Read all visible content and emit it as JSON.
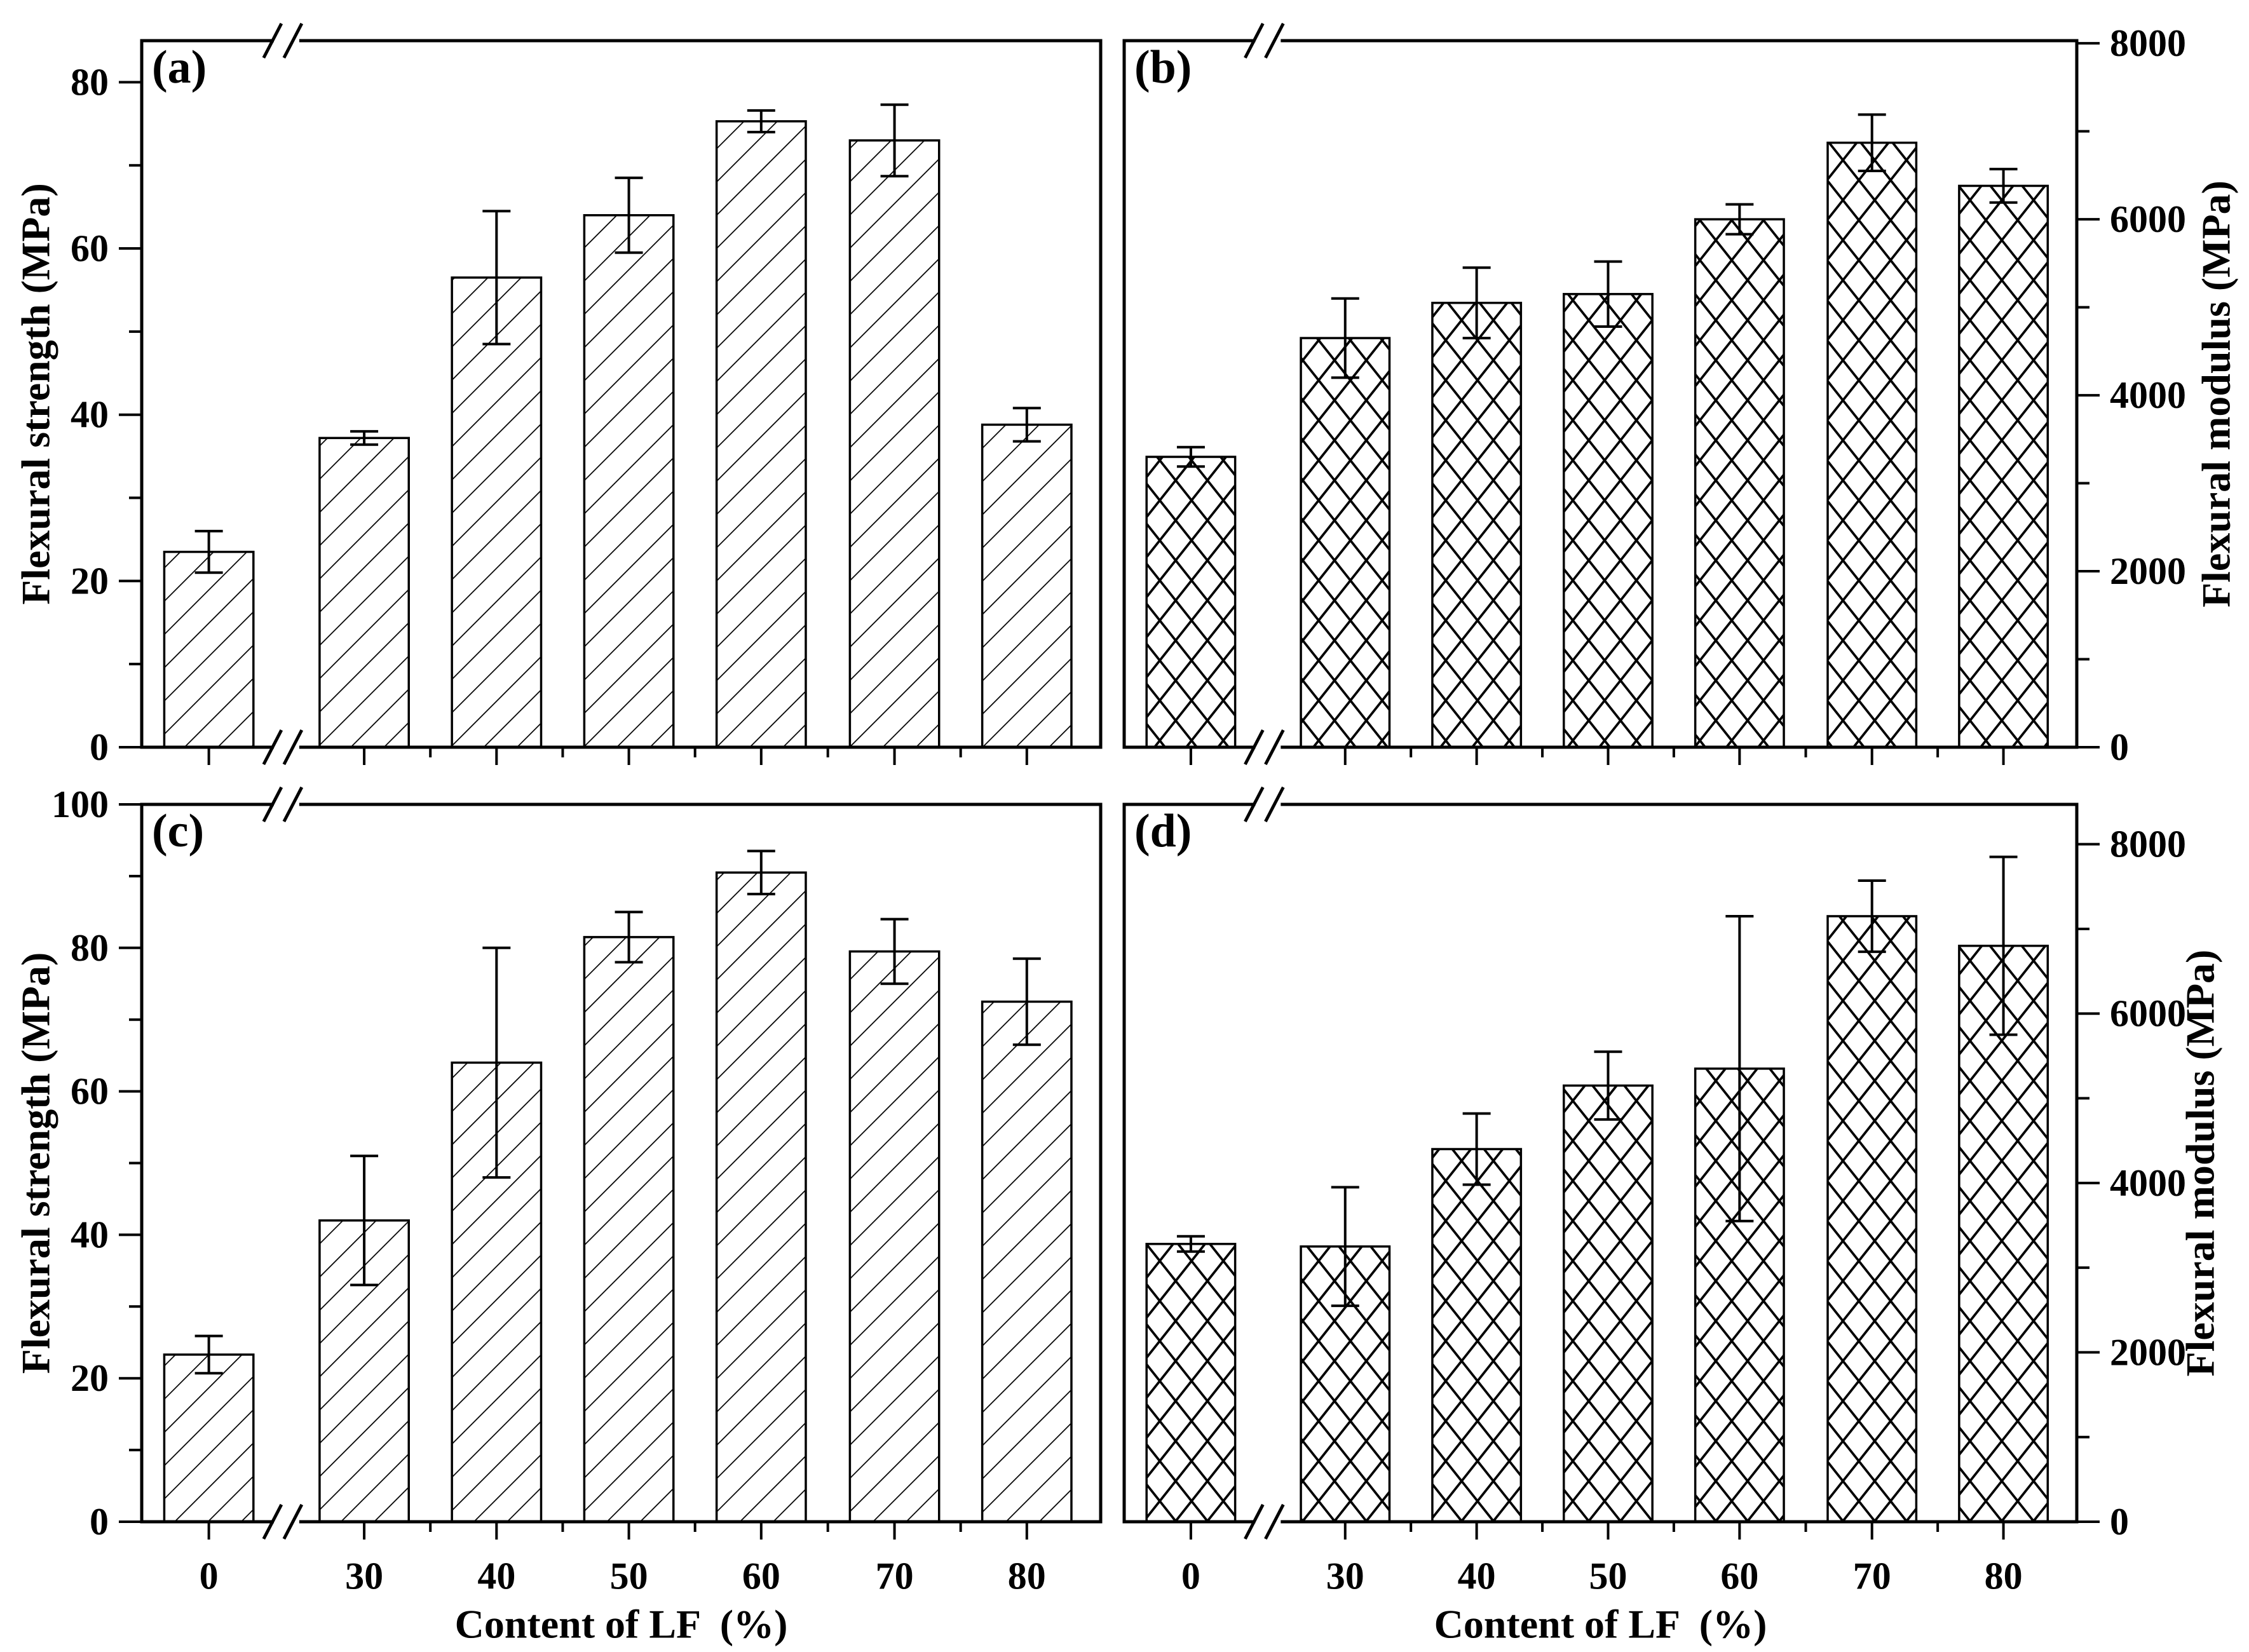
{
  "figure": {
    "background": "#ffffff",
    "ink_color": "#000000",
    "x_axis_title": "Content of LF  (%)"
  },
  "chart_data": [
    {
      "panel": "a",
      "label": "(a)",
      "type": "bar",
      "pattern": "diagonal-hatch",
      "categories": [
        "0",
        "30",
        "40",
        "50",
        "60",
        "70",
        "80"
      ],
      "values": [
        23.5,
        37.2,
        56.5,
        64.0,
        75.3,
        73.0,
        38.8
      ],
      "errors": [
        2.5,
        0.8,
        8.0,
        4.5,
        1.3,
        4.3,
        2.0
      ],
      "x_axis": {
        "show_labels": false,
        "axis_break_between": [
          "0",
          "30"
        ]
      },
      "y_axis": {
        "title": "Flexural strength (MPa)",
        "side": "left",
        "range": [
          0,
          85
        ],
        "major_ticks": [
          0,
          20,
          40,
          60,
          80
        ],
        "tick_labels": [
          "0",
          "20",
          "40",
          "60",
          "80"
        ],
        "minor_ticks": [
          10,
          30,
          50,
          70
        ]
      }
    },
    {
      "panel": "b",
      "label": "(b)",
      "type": "bar",
      "pattern": "cross-hatch",
      "categories": [
        "0",
        "30",
        "40",
        "50",
        "60",
        "70",
        "80"
      ],
      "values": [
        3300,
        4650,
        5050,
        5150,
        6000,
        6870,
        6380
      ],
      "errors": [
        110,
        450,
        400,
        370,
        170,
        320,
        190
      ],
      "x_axis": {
        "show_labels": false,
        "axis_break_between": [
          "0",
          "30"
        ]
      },
      "y_axis": {
        "title": "Flexural modulus (MPa)",
        "side": "right",
        "range": [
          0,
          8030
        ],
        "major_ticks": [
          0,
          2000,
          4000,
          6000,
          8000
        ],
        "tick_labels": [
          "0",
          "2000",
          "4000",
          "6000",
          "8000"
        ],
        "minor_ticks": [
          1000,
          3000,
          5000,
          7000
        ]
      }
    },
    {
      "panel": "c",
      "label": "(c)",
      "type": "bar",
      "pattern": "diagonal-hatch",
      "categories": [
        "0",
        "30",
        "40",
        "50",
        "60",
        "70",
        "80"
      ],
      "values": [
        23.3,
        42.0,
        64.0,
        81.5,
        90.5,
        79.5,
        72.5
      ],
      "errors": [
        2.6,
        9.0,
        16.0,
        3.5,
        3.0,
        4.5,
        6.0
      ],
      "x_axis": {
        "show_labels": true,
        "title": "Content of LF  (%)",
        "axis_break_between": [
          "0",
          "30"
        ]
      },
      "y_axis": {
        "title": "Flexural strength (MPa)",
        "side": "left",
        "range": [
          0,
          100
        ],
        "major_ticks": [
          0,
          20,
          40,
          60,
          80,
          100
        ],
        "tick_labels": [
          "0",
          "20",
          "40",
          "60",
          "80",
          "100"
        ],
        "minor_ticks": [
          10,
          30,
          50,
          70,
          90
        ]
      }
    },
    {
      "panel": "d",
      "label": "(d)",
      "type": "bar",
      "pattern": "cross-hatch",
      "categories": [
        "0",
        "30",
        "40",
        "50",
        "60",
        "70",
        "80"
      ],
      "values": [
        3280,
        3250,
        4400,
        5150,
        5350,
        7150,
        6800
      ],
      "errors": [
        90,
        700,
        420,
        400,
        1800,
        420,
        1050
      ],
      "x_axis": {
        "show_labels": true,
        "title": "Content of LF  (%)",
        "axis_break_between": [
          "0",
          "30"
        ]
      },
      "y_axis": {
        "title": "Flexural modulus (MPa)",
        "side": "right",
        "range": [
          0,
          8470
        ],
        "major_ticks": [
          0,
          2000,
          4000,
          6000,
          8000
        ],
        "tick_labels": [
          "0",
          "2000",
          "4000",
          "6000",
          "8000"
        ],
        "minor_ticks": [
          1000,
          3000,
          5000,
          7000
        ]
      }
    }
  ]
}
